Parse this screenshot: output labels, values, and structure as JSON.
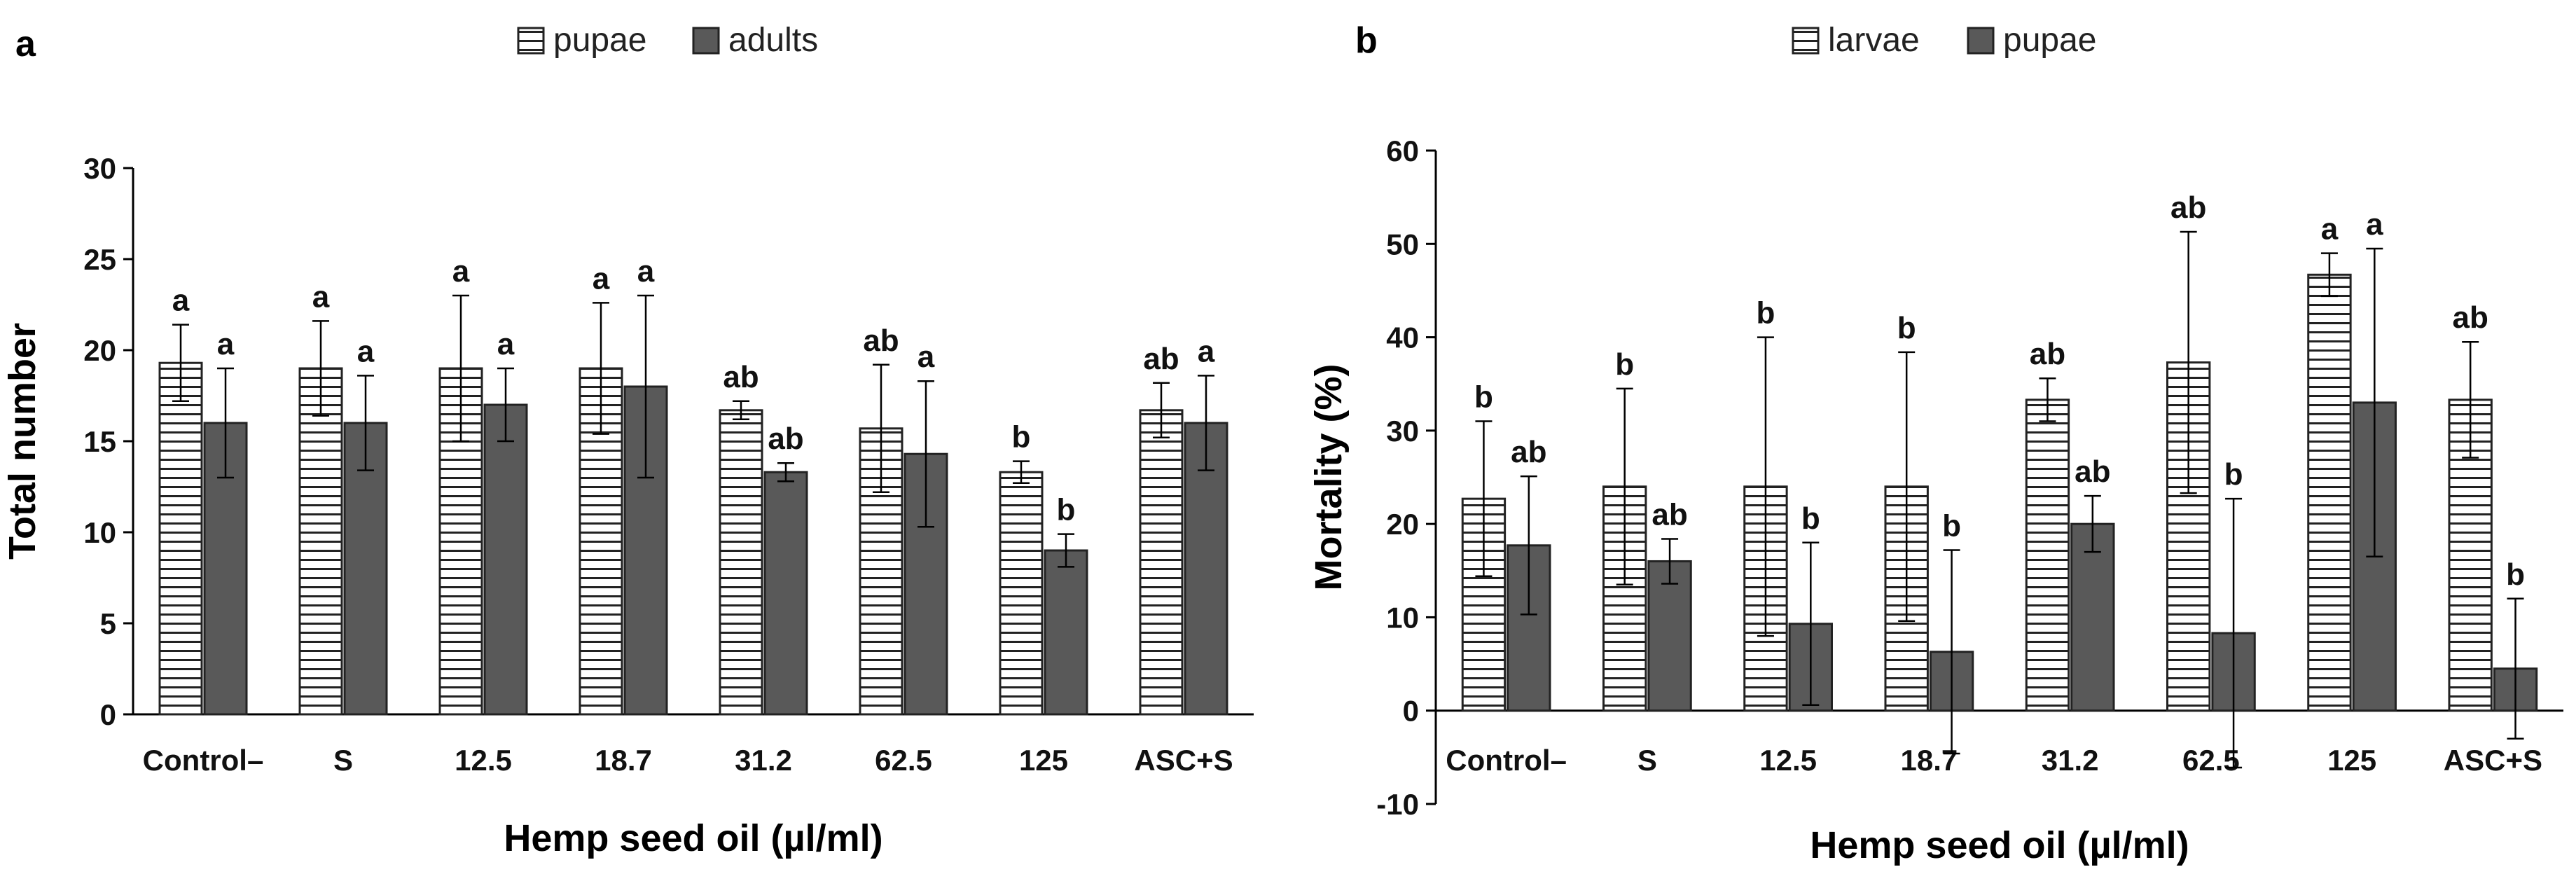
{
  "chart_data": [
    {
      "panel_label": "a",
      "type": "bar",
      "xlabel": "Hemp seed oil (µl/ml)",
      "ylabel": "Total number",
      "ylim": [
        0,
        30
      ],
      "ytick_step": 5,
      "legend_position": "top-center",
      "categories": [
        "Control–",
        "S",
        "12.5",
        "18.7",
        "31.2",
        "62.5",
        "125",
        "ASC+S"
      ],
      "series": [
        {
          "name": "pupae",
          "pattern": "horizontal-stripes",
          "color": "#ffffff",
          "values": [
            19.3,
            19.0,
            19.0,
            19.0,
            16.7,
            15.7,
            13.3,
            16.7
          ],
          "errors": [
            2.1,
            2.6,
            4.0,
            3.6,
            0.5,
            3.5,
            0.6,
            1.5
          ],
          "labels": [
            "a",
            "a",
            "a",
            "a",
            "ab",
            "ab",
            "b",
            "ab"
          ]
        },
        {
          "name": "adults",
          "pattern": "solid",
          "color": "#595959",
          "values": [
            16.0,
            16.0,
            17.0,
            18.0,
            13.3,
            14.3,
            9.0,
            16.0
          ],
          "errors": [
            3.0,
            2.6,
            2.0,
            5.0,
            0.5,
            4.0,
            0.9,
            2.6
          ],
          "labels": [
            "a",
            "a",
            "a",
            "a",
            "ab",
            "a",
            "b",
            "a"
          ]
        }
      ]
    },
    {
      "panel_label": "b",
      "type": "bar",
      "xlabel": "Hemp seed oil (µl/ml)",
      "ylabel": "Mortality (%)",
      "ylim": [
        -10,
        60
      ],
      "ytick_step": 10,
      "legend_position": "top-center",
      "categories": [
        "Control–",
        "S",
        "12.5",
        "18.7",
        "31.2",
        "62.5",
        "125",
        "ASC+S"
      ],
      "series": [
        {
          "name": "larvae",
          "pattern": "horizontal-stripes",
          "color": "#ffffff",
          "values": [
            22.7,
            24.0,
            24.0,
            24.0,
            33.3,
            37.3,
            46.7,
            33.3
          ],
          "errors": [
            8.3,
            10.5,
            16.0,
            14.4,
            2.3,
            14.0,
            2.3,
            6.2
          ],
          "labels": [
            "b",
            "b",
            "b",
            "b",
            "ab",
            "ab",
            "a",
            "ab"
          ]
        },
        {
          "name": "pupae",
          "pattern": "solid",
          "color": "#595959",
          "values": [
            17.7,
            16.0,
            9.3,
            6.3,
            20.0,
            8.3,
            33.0,
            4.5
          ],
          "errors": [
            7.4,
            2.4,
            8.7,
            10.9,
            3.0,
            14.4,
            16.5,
            7.5
          ],
          "labels": [
            "ab",
            "ab",
            "b",
            "b",
            "ab",
            "b",
            "a",
            "b"
          ]
        }
      ]
    }
  ]
}
